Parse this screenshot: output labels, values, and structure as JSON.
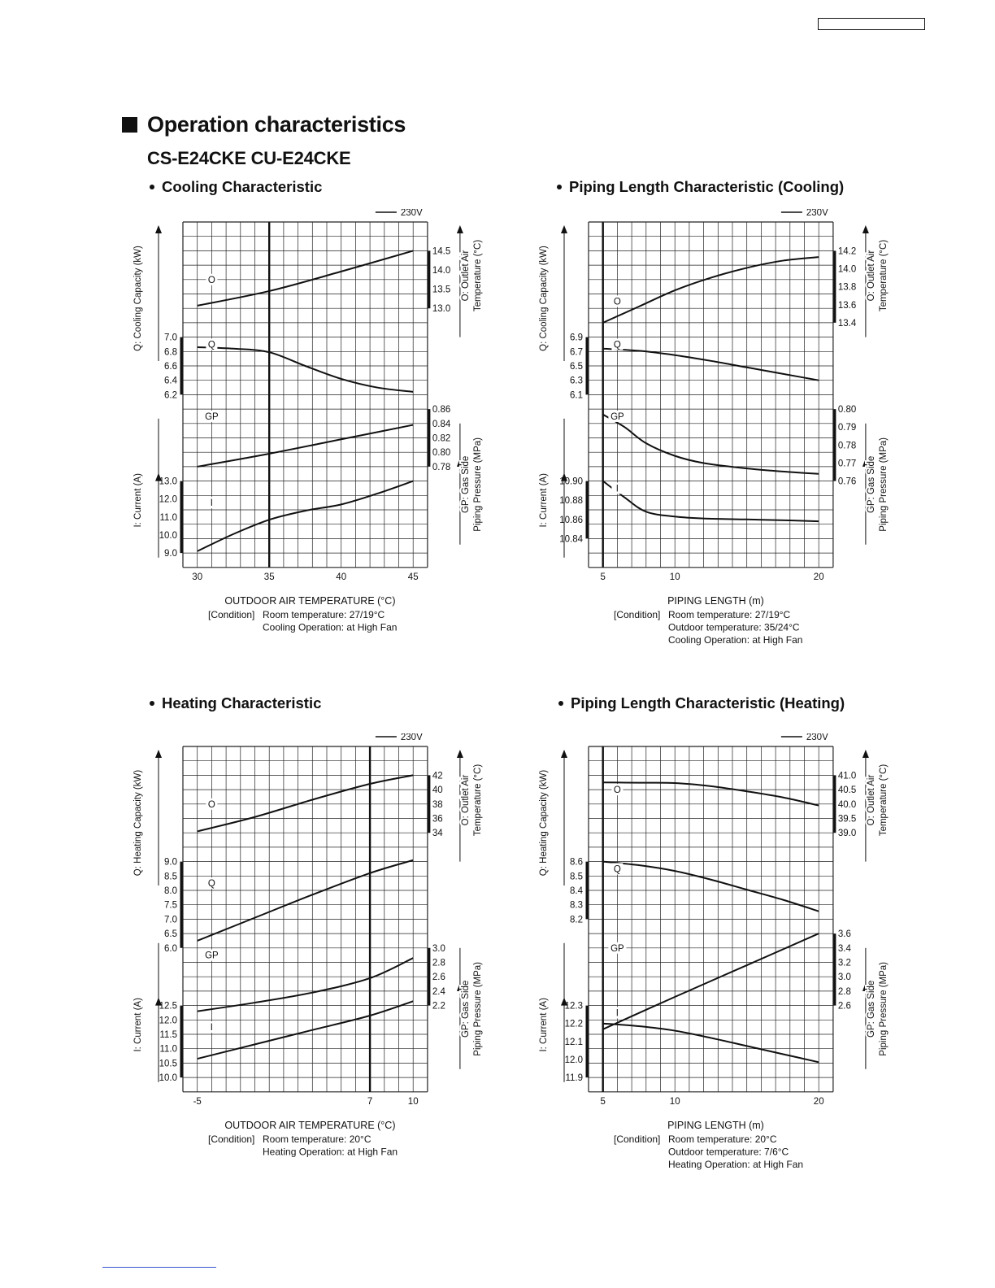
{
  "section_title": "Operation characteristics",
  "model_title": "CS-E24CKE  CU-E24CKE",
  "chart_data": [
    {
      "type": "line",
      "title": "Cooling Characteristic",
      "legend": "230V",
      "legend_placement": "top-right",
      "grid": true,
      "xlabel": "OUTDOOR AIR TEMPERATURE (°C)",
      "x_range": [
        29,
        46
      ],
      "x_ticks": [
        "30",
        "35",
        "40",
        "45"
      ],
      "reference_x": 35,
      "left_labels": {
        "upper": "Q: Cooling Capacity (kW)",
        "lower": "I: Current (A)"
      },
      "right_labels": {
        "upper": [
          "O: Outlet Air",
          "Temperature (°C)"
        ],
        "lower": [
          "GP: Gas Side",
          "Piping Pressure (MPa)"
        ]
      },
      "conditions": [
        "[Condition]",
        "Room temperature: 27/19°C",
        "Cooling Operation: at High Fan"
      ],
      "series": [
        {
          "name": "O",
          "axis_side": "right",
          "ticks": [
            "14.5",
            "14.0",
            "13.5",
            "13.0"
          ],
          "ylim": [
            13.0,
            14.5
          ],
          "x": [
            30,
            35,
            40,
            45
          ],
          "values": [
            13.07,
            13.45,
            13.96,
            14.5
          ]
        },
        {
          "name": "Q",
          "axis_side": "left",
          "ticks": [
            "7.0",
            "6.8",
            "6.6",
            "6.4",
            "6.2"
          ],
          "ylim": [
            6.2,
            7.0
          ],
          "x": [
            30,
            32.5,
            35,
            37.5,
            40,
            42.5,
            45
          ],
          "values": [
            6.86,
            6.84,
            6.79,
            6.6,
            6.42,
            6.3,
            6.24
          ]
        },
        {
          "name": "GP",
          "axis_side": "right",
          "ticks": [
            "0.86",
            "0.84",
            "0.82",
            "0.80",
            "0.78"
          ],
          "ylim": [
            0.78,
            0.86
          ],
          "x": [
            30,
            35,
            40,
            45
          ],
          "values": [
            0.78,
            0.798,
            0.818,
            0.838
          ]
        },
        {
          "name": "I",
          "axis_side": "left",
          "ticks": [
            "13.0",
            "12.0",
            "11.0",
            "10.0",
            "9.0"
          ],
          "ylim": [
            9.0,
            13.0
          ],
          "x": [
            30,
            32.5,
            35,
            37.5,
            40,
            42.5,
            45
          ],
          "values": [
            9.1,
            10.05,
            10.85,
            11.35,
            11.7,
            12.3,
            13.0
          ]
        }
      ]
    },
    {
      "type": "line",
      "title": "Piping Length Characteristic (Cooling)",
      "legend": "230V",
      "legend_placement": "top-right",
      "grid": true,
      "xlabel": "PIPING LENGTH (m)",
      "x_range": [
        4,
        21
      ],
      "x_ticks": [
        "5",
        "10",
        "20"
      ],
      "reference_x": 5,
      "left_labels": {
        "upper": "Q: Cooling Capacity (kW)",
        "lower": "I: Current (A)"
      },
      "right_labels": {
        "upper": [
          "O: Outlet Air",
          "Temperature (°C)"
        ],
        "lower": [
          "GP: Gas Side",
          "Piping Pressure (MPa)"
        ]
      },
      "conditions": [
        "[Condition]",
        "Room temperature: 27/19°C",
        "Outdoor temperature: 35/24°C",
        "Cooling Operation: at High Fan"
      ],
      "series": [
        {
          "name": "O",
          "axis_side": "right",
          "ticks": [
            "14.2",
            "14.0",
            "13.8",
            "13.6",
            "13.4"
          ],
          "ylim": [
            13.4,
            14.2
          ],
          "x": [
            5,
            7.5,
            10,
            12.5,
            15,
            17.5,
            20
          ],
          "values": [
            13.4,
            13.58,
            13.76,
            13.9,
            14.01,
            14.09,
            14.13
          ]
        },
        {
          "name": "Q",
          "axis_side": "left",
          "ticks": [
            "6.9",
            "6.7",
            "6.5",
            "6.3",
            "6.1"
          ],
          "ylim": [
            6.1,
            6.9
          ],
          "x": [
            5,
            7.5,
            10,
            12.5,
            15,
            17.5,
            20
          ],
          "values": [
            6.74,
            6.71,
            6.65,
            6.57,
            6.48,
            6.39,
            6.3
          ]
        },
        {
          "name": "GP",
          "axis_side": "right",
          "ticks": [
            "0.80",
            "0.79",
            "0.78",
            "0.77",
            "0.76"
          ],
          "ylim": [
            0.76,
            0.8
          ],
          "x": [
            5,
            6.5,
            8,
            10,
            12,
            15,
            18,
            20
          ],
          "values": [
            0.797,
            0.79,
            0.781,
            0.774,
            0.77,
            0.767,
            0.765,
            0.764
          ]
        },
        {
          "name": "I",
          "axis_side": "left",
          "ticks": [
            "10.90",
            "10.88",
            "10.86",
            "10.84"
          ],
          "ylim": [
            10.84,
            10.9
          ],
          "x": [
            5,
            6.5,
            8,
            10,
            12,
            15,
            18,
            20
          ],
          "values": [
            10.9,
            10.883,
            10.868,
            10.863,
            10.861,
            10.86,
            10.859,
            10.858
          ]
        }
      ]
    },
    {
      "type": "line",
      "title": "Heating Characteristic",
      "legend": "230V",
      "legend_placement": "top-right",
      "grid": true,
      "xlabel": "OUTDOOR AIR TEMPERATURE (°C)",
      "x_range": [
        -6,
        11
      ],
      "x_ticks": [
        "-5",
        "7",
        "10"
      ],
      "reference_x": 7,
      "left_labels": {
        "upper": "Q: Heating Capacity (kW)",
        "lower": "I: Current (A)"
      },
      "right_labels": {
        "upper": [
          "O: Outlet Air",
          "Temperature (°C)"
        ],
        "lower": [
          "GP: Gas Side",
          "Piping Pressure (MPa)"
        ]
      },
      "conditions": [
        "[Condition]",
        "Room temperature: 20°C",
        "Heating Operation: at High Fan"
      ],
      "series": [
        {
          "name": "O",
          "axis_side": "right",
          "ticks": [
            "42",
            "40",
            "38",
            "36",
            "34"
          ],
          "ylim": [
            34,
            42
          ],
          "x": [
            -5,
            -1,
            3,
            7,
            10
          ],
          "values": [
            34.2,
            36.2,
            38.6,
            40.8,
            42.0
          ]
        },
        {
          "name": "Q",
          "axis_side": "left",
          "ticks": [
            "9.0",
            "8.5",
            "8.0",
            "7.5",
            "7.0",
            "6.5",
            "6.0"
          ],
          "ylim": [
            6.0,
            9.0
          ],
          "x": [
            -5,
            -1,
            3,
            7,
            10
          ],
          "values": [
            6.25,
            7.05,
            7.85,
            8.6,
            9.05
          ]
        },
        {
          "name": "GP",
          "axis_side": "right",
          "ticks": [
            "3.0",
            "2.8",
            "2.6",
            "2.4",
            "2.2"
          ],
          "ylim": [
            2.2,
            3.0
          ],
          "x": [
            -5,
            -1,
            3,
            7,
            10
          ],
          "values": [
            2.12,
            2.24,
            2.38,
            2.58,
            2.86
          ]
        },
        {
          "name": "I",
          "axis_side": "left",
          "ticks": [
            "12.5",
            "12.0",
            "11.5",
            "11.0",
            "10.5",
            "10.0"
          ],
          "ylim": [
            10.0,
            12.5
          ],
          "x": [
            -5,
            -1,
            3,
            7,
            10
          ],
          "values": [
            10.65,
            11.15,
            11.65,
            12.15,
            12.65
          ]
        }
      ]
    },
    {
      "type": "line",
      "title": "Piping Length Characteristic (Heating)",
      "legend": "230V",
      "legend_placement": "top-right",
      "grid": true,
      "xlabel": "PIPING LENGTH (m)",
      "x_range": [
        4,
        21
      ],
      "x_ticks": [
        "5",
        "10",
        "20"
      ],
      "reference_x": 5,
      "left_labels": {
        "upper": "Q: Heating Capacity (kW)",
        "lower": "I: Current (A)"
      },
      "right_labels": {
        "upper": [
          "O: Outlet Air",
          "Temperature (°C)"
        ],
        "lower": [
          "GP: Gas Side",
          "Piping Pressure (MPa)"
        ]
      },
      "conditions": [
        "[Condition]",
        "Room temperature: 20°C",
        "Outdoor temperature: 7/6°C",
        "Heating Operation: at High Fan"
      ],
      "series": [
        {
          "name": "O",
          "axis_side": "right",
          "ticks": [
            "41.0",
            "40.5",
            "40.0",
            "39.5",
            "39.0"
          ],
          "ylim": [
            39.0,
            41.0
          ],
          "x": [
            5,
            7.5,
            10,
            12.5,
            15,
            17.5,
            20
          ],
          "values": [
            40.75,
            40.74,
            40.73,
            40.62,
            40.44,
            40.23,
            39.95
          ]
        },
        {
          "name": "Q",
          "axis_side": "left",
          "ticks": [
            "8.6",
            "8.5",
            "8.4",
            "8.3",
            "8.2"
          ],
          "ylim": [
            8.2,
            8.6
          ],
          "x": [
            5,
            7.5,
            10,
            12.5,
            15,
            17.5,
            20
          ],
          "values": [
            8.6,
            8.575,
            8.535,
            8.475,
            8.405,
            8.335,
            8.255
          ]
        },
        {
          "name": "GP",
          "axis_side": "right",
          "ticks": [
            "3.6",
            "3.4",
            "3.2",
            "3.0",
            "2.8",
            "2.6"
          ],
          "ylim": [
            2.6,
            3.6
          ],
          "x": [
            5,
            10,
            15,
            20
          ],
          "values": [
            2.27,
            2.72,
            3.16,
            3.6
          ]
        },
        {
          "name": "I",
          "axis_side": "left",
          "ticks": [
            "12.3",
            "12.2",
            "12.1",
            "12.0",
            "11.9"
          ],
          "ylim": [
            11.9,
            12.3
          ],
          "x": [
            5,
            7.5,
            10,
            12.5,
            15,
            17.5,
            20
          ],
          "values": [
            12.2,
            12.185,
            12.16,
            12.12,
            12.075,
            12.03,
            11.985
          ]
        }
      ]
    }
  ]
}
